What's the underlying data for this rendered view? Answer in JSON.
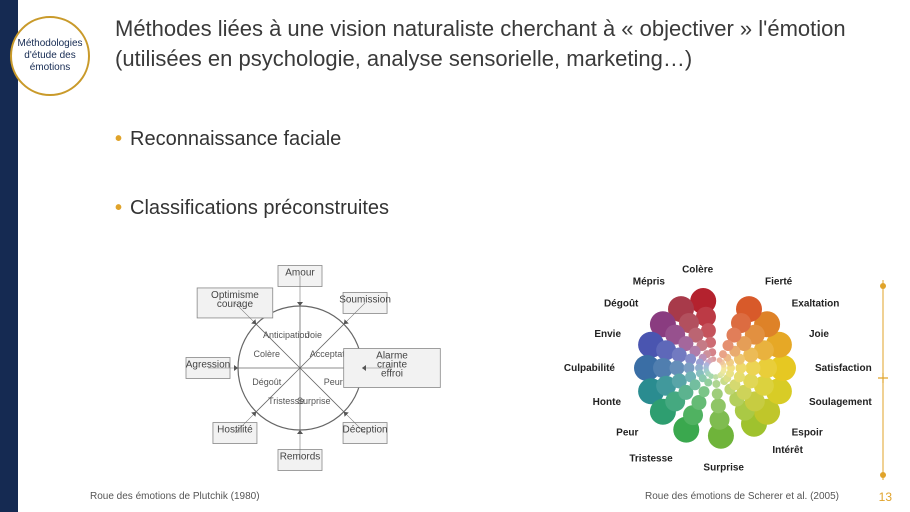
{
  "badge_text": "Méthodologies d'étude des émotions",
  "title": "Méthodes liées à une vision naturaliste cherchant à « objectiver » l'émotion (utilisées en psychologie, analyse sensorielle, marketing…)",
  "bullets": [
    "Reconnaissance faciale",
    "Classifications préconstruites"
  ],
  "bullet_accent": "#e0a32a",
  "caption1": "Roue des émotions de Plutchik (1980)",
  "caption2": "Roue des émotions de Scherer et al. (2005)",
  "page_number": "13",
  "plutchik": {
    "type": "wheel",
    "circle_color": "#666666",
    "segments": [
      "Joie",
      "Acceptation",
      "Peur",
      "Surprise",
      "Tristesse",
      "Dégoût",
      "Colère",
      "Anticipation"
    ],
    "outer_boxes": [
      "Amour",
      "Soumission",
      "Alarme, crainte, effroi",
      "Déception",
      "Remords",
      "Hostilité",
      "Agression",
      "Optimisme, courage"
    ],
    "box_bg": "#f2f2f2",
    "box_border": "#888888",
    "text_color": "#555555",
    "font_size_seg": 9,
    "font_size_box": 10
  },
  "scherer": {
    "type": "circle-packed-wheel",
    "background": "#ffffff",
    "labels": [
      {
        "name": "Colère",
        "angle": -100,
        "color": "#b4222e"
      },
      {
        "name": "Mépris",
        "angle": -120,
        "color": "#a83a4a"
      },
      {
        "name": "Dégoût",
        "angle": -140,
        "color": "#8a3c80"
      },
      {
        "name": "Envie",
        "angle": -160,
        "color": "#4a55b0"
      },
      {
        "name": "Culpabilité",
        "angle": 180,
        "color": "#3a6ea5"
      },
      {
        "name": "Honte",
        "angle": 160,
        "color": "#2a8c90"
      },
      {
        "name": "Peur",
        "angle": 140,
        "color": "#2e9e70"
      },
      {
        "name": "Tristesse",
        "angle": 115,
        "color": "#3aa84e"
      },
      {
        "name": "Surprise",
        "angle": 85,
        "color": "#6fb43a"
      },
      {
        "name": "Intérêt",
        "angle": 55,
        "color": "#9fc22e"
      },
      {
        "name": "Espoir",
        "angle": 40,
        "color": "#c0c62a"
      },
      {
        "name": "Soulagement",
        "angle": 20,
        "color": "#d8cc26"
      },
      {
        "name": "Satisfaction",
        "angle": 0,
        "color": "#e6c822"
      },
      {
        "name": "Joie",
        "angle": -20,
        "color": "#e6a826"
      },
      {
        "name": "Exaltation",
        "angle": -40,
        "color": "#de8228"
      },
      {
        "name": "Fierté",
        "angle": -60,
        "color": "#d85a2a"
      }
    ],
    "ring_radii": [
      68,
      52,
      38,
      26,
      16,
      9
    ],
    "circle_sizes": [
      13,
      10,
      7.5,
      5.5,
      4,
      2.8
    ],
    "label_radius": 100,
    "label_fontsize": 10
  },
  "decoration_color": "#e0a32a"
}
